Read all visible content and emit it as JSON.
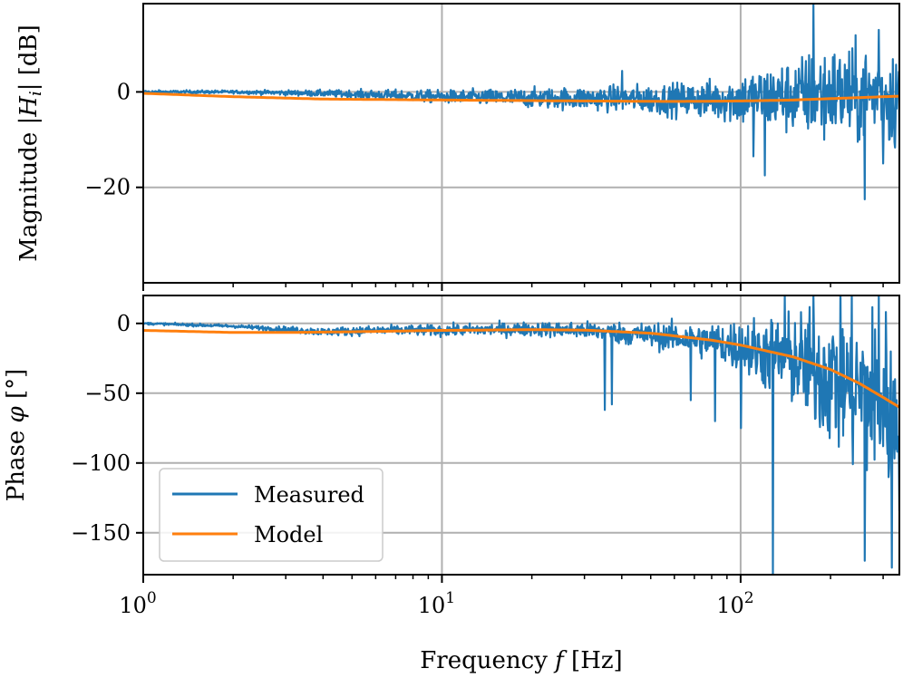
{
  "chart_data": {
    "type": "line",
    "x_scale": "log",
    "xlim": [
      1,
      340
    ],
    "xlabel": {
      "text": "Frequency ",
      "var": "f",
      "unit": " [Hz]"
    },
    "x_ticks": [
      {
        "value": 1,
        "base": "10",
        "exp": "0"
      },
      {
        "value": 10,
        "base": "10",
        "exp": "1"
      },
      {
        "value": 100,
        "base": "10",
        "exp": "2"
      }
    ],
    "grid": true,
    "colors": {
      "measured": "#1f77b4",
      "model": "#ff7f0e",
      "grid": "#b0b0b0"
    },
    "legend": {
      "placement": "lower-left (bottom panel)",
      "entries": [
        {
          "label": "Measured",
          "color": "#1f77b4"
        },
        {
          "label": "Model",
          "color": "#ff7f0e"
        }
      ]
    },
    "panels": [
      {
        "id": "magnitude",
        "ylabel": {
          "text": "Magnitude ",
          "var": "|H",
          "sub": "i",
          "close": "|",
          "unit": " [dB]"
        },
        "ylim": [
          -40,
          18.5
        ],
        "y_ticks": [
          {
            "value": 0,
            "label": "0"
          },
          {
            "value": -20,
            "label": "−20"
          }
        ],
        "series": [
          {
            "name": "Measured",
            "color": "#1f77b4",
            "x": [
              1,
              2,
              4,
              6,
              10,
              20,
              40,
              60,
              80,
              100,
              120,
              150,
              170,
              200,
              250,
              300,
              340
            ],
            "y": [
              0,
              0,
              -0.3,
              -0.6,
              -1.0,
              -1.3,
              -1.4,
              -1.6,
              -1.6,
              -1.5,
              -1.3,
              -1.0,
              -0.5,
              0,
              -1.0,
              -0.5,
              -1.0
            ],
            "spread": [
              0.3,
              0.3,
              0.6,
              0.9,
              1.2,
              1.8,
              2.4,
              3.0,
              3.6,
              5.0,
              6.0,
              7.0,
              8.0,
              8.5,
              9.0,
              9.5,
              10.0
            ],
            "spikes": [
              {
                "x": 40,
                "y": 4.4
              },
              {
                "x": 110,
                "y": -13.5
              },
              {
                "x": 120,
                "y": -17.5
              },
              {
                "x": 175,
                "y": 18.5
              },
              {
                "x": 190,
                "y": -10
              },
              {
                "x": 260,
                "y": -22.5
              },
              {
                "x": 290,
                "y": 13
              },
              {
                "x": 300,
                "y": -15
              }
            ]
          },
          {
            "name": "Model",
            "color": "#ff7f0e",
            "x": [
              1,
              2,
              4,
              10,
              30,
              60,
              100,
              150,
              200,
              250,
              300,
              340
            ],
            "y": [
              -0.3,
              -1.0,
              -1.5,
              -1.7,
              -1.9,
              -2.0,
              -1.9,
              -1.7,
              -1.4,
              -1.2,
              -1.0,
              -0.9
            ]
          }
        ]
      },
      {
        "id": "phase",
        "ylabel": {
          "text": "Phase ",
          "var": "φ",
          "unit": " [°]"
        },
        "ylim": [
          -180,
          20
        ],
        "y_ticks": [
          {
            "value": 0,
            "label": "0"
          },
          {
            "value": -50,
            "label": "−50"
          },
          {
            "value": -100,
            "label": "−100"
          },
          {
            "value": -150,
            "label": "−150"
          }
        ],
        "series": [
          {
            "name": "Measured",
            "color": "#1f77b4",
            "x": [
              1,
              2,
              4,
              6,
              10,
              20,
              30,
              40,
              60,
              80,
              100,
              150,
              200,
              250,
              300,
              340
            ],
            "y": [
              0,
              -2,
              -6,
              -5,
              -5,
              -4,
              -5,
              -7,
              -10,
              -13,
              -17,
              -27,
              -38,
              -48,
              -58,
              -62
            ],
            "spread": [
              0.7,
              1.0,
              2.5,
              3.0,
              3.5,
              4.5,
              5.5,
              7.0,
              9.0,
              12.0,
              18.0,
              30.0,
              45.0,
              55.0,
              60.0,
              60.0
            ],
            "spikes": [
              {
                "x": 35,
                "y": -62
              },
              {
                "x": 37,
                "y": -58
              },
              {
                "x": 68,
                "y": -55
              },
              {
                "x": 82,
                "y": -70
              },
              {
                "x": 100,
                "y": -75
              },
              {
                "x": 128,
                "y": -180
              },
              {
                "x": 140,
                "y": 20
              },
              {
                "x": 175,
                "y": 20
              },
              {
                "x": 260,
                "y": -170
              },
              {
                "x": 290,
                "y": 20
              },
              {
                "x": 320,
                "y": -175
              }
            ]
          },
          {
            "name": "Model",
            "color": "#ff7f0e",
            "x": [
              1,
              2,
              3,
              5,
              10,
              20,
              30,
              50,
              80,
              100,
              150,
              200,
              250,
              300,
              340
            ],
            "y": [
              -5,
              -6.5,
              -6.5,
              -6,
              -5,
              -4.5,
              -4.8,
              -7,
              -12,
              -15.5,
              -24,
              -33,
              -43,
              -53,
              -60
            ]
          }
        ]
      }
    ]
  }
}
